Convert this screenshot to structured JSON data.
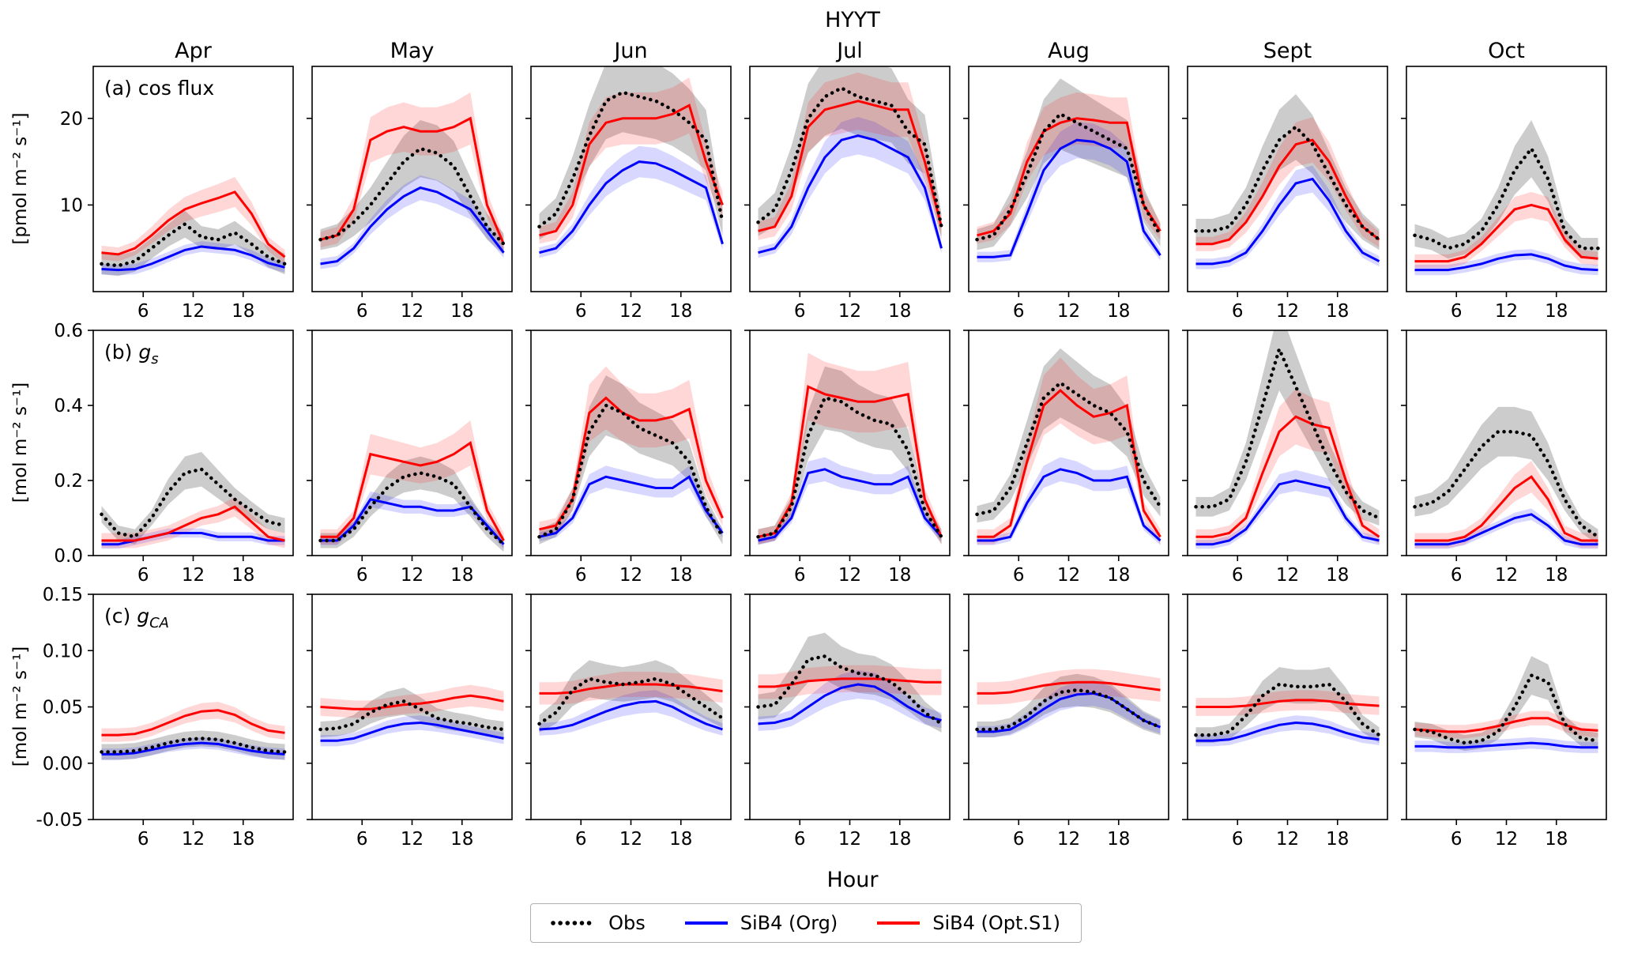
{
  "chart_data": {
    "type": "line",
    "title": "HYYT",
    "xlabel": "Hour",
    "x": [
      1,
      3,
      5,
      7,
      9,
      11,
      13,
      15,
      17,
      19,
      21,
      23
    ],
    "xlim": [
      0,
      24
    ],
    "xticks": [
      6,
      12,
      18
    ],
    "columns": [
      "Apr",
      "May",
      "Jun",
      "Jul",
      "Aug",
      "Sept",
      "Oct"
    ],
    "series": [
      {
        "key": "obs",
        "name": "Obs",
        "color": "#000000",
        "width": 4.5,
        "dash": "0.1 8",
        "band_color": "#555555",
        "band_opacity": 0.3
      },
      {
        "key": "org",
        "name": "SiB4 (Org)",
        "color": "#0000ff",
        "width": 3,
        "band_color": "#2222ff",
        "band_opacity": 0.18
      },
      {
        "key": "opt",
        "name": "SiB4 (Opt.S1)",
        "color": "#ff0000",
        "width": 3,
        "band_color": "#ff2222",
        "band_opacity": 0.18
      }
    ],
    "legend": [
      {
        "key": "obs",
        "label": "Obs"
      },
      {
        "key": "org",
        "label": "SiB4 (Org)"
      },
      {
        "key": "opt",
        "label": "SiB4 (Opt.S1)"
      }
    ],
    "rows": [
      {
        "key": "cos-flux",
        "panel_label": {
          "prefix": "(a) cos flux"
        },
        "ylabel": "[pmol m⁻² s⁻¹]",
        "ylim": [
          0,
          26
        ],
        "ytick_vals": [
          10,
          20
        ],
        "ytick_labels": [
          "10",
          "20"
        ],
        "band": {
          "obs": [
            0.2,
            1.2
          ],
          "org": [
            0.12,
            0.6
          ],
          "opt": [
            0.15,
            0.8
          ]
        }
      },
      {
        "key": "gs",
        "panel_label": {
          "prefix": "(b) ",
          "var": "g",
          "sub": "s"
        },
        "ylabel": "[mol m⁻² s⁻¹]",
        "ylim": [
          0,
          0.6
        ],
        "ytick_vals": [
          0,
          0.2,
          0.4,
          0.6
        ],
        "ytick_labels": [
          "0.0",
          "0.2",
          "0.4",
          "0.6"
        ],
        "band": {
          "obs": [
            0.2,
            0.02
          ],
          "org": [
            0.14,
            0.012
          ],
          "opt": [
            0.2,
            0.02
          ]
        }
      },
      {
        "key": "gca",
        "panel_label": {
          "prefix": "(c) ",
          "var": "g",
          "sub": "CA"
        },
        "ylabel": "[mol m⁻² s⁻¹]",
        "ylim": [
          -0.05,
          0.15
        ],
        "ytick_vals": [
          -0.05,
          0,
          0.05,
          0.1,
          0.15
        ],
        "ytick_labels": [
          "-0.05",
          "0.00",
          "0.05",
          "0.10",
          "0.15"
        ],
        "band": {
          "obs": [
            0.22,
            0.007
          ],
          "org": [
            0.18,
            0.005
          ],
          "opt": [
            0.16,
            0.006
          ]
        }
      }
    ],
    "panels": [
      [
        {
          "obs": [
            3.2,
            3.0,
            3.5,
            5.0,
            6.5,
            7.8,
            6.3,
            6.0,
            6.8,
            5.5,
            4.0,
            3.2
          ],
          "org": [
            2.6,
            2.5,
            2.6,
            3.2,
            4.0,
            4.8,
            5.2,
            5.0,
            4.8,
            4.2,
            3.3,
            2.8
          ],
          "opt": [
            4.5,
            4.3,
            5.0,
            6.5,
            8.2,
            9.5,
            10.2,
            10.8,
            11.5,
            9.0,
            5.5,
            4.0
          ]
        },
        {
          "obs": [
            6.0,
            6.5,
            8.0,
            10.0,
            12.5,
            15.0,
            16.5,
            16.0,
            14.5,
            11.0,
            7.5,
            5.5
          ],
          "org": [
            3.2,
            3.5,
            5.0,
            7.5,
            9.5,
            11.0,
            12.0,
            11.5,
            10.5,
            9.5,
            7.0,
            4.5
          ],
          "opt": [
            6.0,
            6.5,
            9.5,
            17.5,
            18.5,
            19.0,
            18.5,
            18.5,
            19.0,
            20.0,
            10.0,
            5.5
          ]
        },
        {
          "obs": [
            7.5,
            9.0,
            13.0,
            18.0,
            22.0,
            23.0,
            22.5,
            22.0,
            21.0,
            19.5,
            17.5,
            8.0
          ],
          "org": [
            4.5,
            5.0,
            7.0,
            10.0,
            12.5,
            14.0,
            15.0,
            14.8,
            14.0,
            13.0,
            12.0,
            5.5
          ],
          "opt": [
            6.5,
            7.0,
            10.0,
            17.0,
            19.5,
            20.0,
            20.0,
            20.0,
            20.5,
            21.5,
            15.0,
            10.0
          ]
        },
        {
          "obs": [
            8.0,
            9.5,
            14.0,
            20.0,
            22.5,
            23.5,
            22.5,
            22.0,
            21.5,
            18.5,
            17.0,
            7.5
          ],
          "org": [
            4.5,
            5.0,
            7.5,
            12.0,
            15.5,
            17.5,
            18.0,
            17.5,
            16.5,
            15.5,
            12.0,
            5.0
          ],
          "opt": [
            7.0,
            7.5,
            11.0,
            19.0,
            21.0,
            21.5,
            22.0,
            21.5,
            21.0,
            21.0,
            15.0,
            7.5
          ]
        },
        {
          "obs": [
            6.0,
            6.5,
            9.5,
            13.5,
            18.5,
            20.5,
            19.5,
            18.5,
            17.5,
            16.5,
            10.0,
            6.5
          ],
          "org": [
            4.0,
            4.0,
            4.2,
            9.0,
            14.0,
            16.5,
            17.5,
            17.3,
            16.5,
            15.0,
            7.0,
            4.2
          ],
          "opt": [
            6.5,
            7.0,
            9.0,
            15.0,
            18.5,
            19.5,
            20.0,
            19.8,
            19.5,
            19.5,
            10.0,
            7.0
          ]
        },
        {
          "obs": [
            7.0,
            7.0,
            7.5,
            10.0,
            14.0,
            17.5,
            19.0,
            17.0,
            13.5,
            10.0,
            7.5,
            6.0
          ],
          "org": [
            3.2,
            3.2,
            3.5,
            4.5,
            7.0,
            10.0,
            12.5,
            13.0,
            10.5,
            7.0,
            4.5,
            3.5
          ],
          "opt": [
            5.5,
            5.5,
            6.0,
            8.0,
            11.0,
            14.5,
            17.0,
            17.5,
            15.0,
            11.0,
            7.5,
            6.0
          ]
        },
        {
          "obs": [
            6.5,
            6.0,
            5.0,
            5.5,
            7.0,
            10.0,
            14.0,
            16.5,
            13.0,
            7.0,
            5.0,
            5.0
          ],
          "org": [
            2.5,
            2.5,
            2.5,
            2.8,
            3.2,
            3.8,
            4.2,
            4.3,
            3.8,
            3.0,
            2.6,
            2.5
          ],
          "opt": [
            3.5,
            3.5,
            3.5,
            4.0,
            5.5,
            7.5,
            9.5,
            10.0,
            9.5,
            6.0,
            4.0,
            3.8
          ]
        }
      ],
      [
        {
          "obs": [
            0.11,
            0.06,
            0.05,
            0.1,
            0.17,
            0.22,
            0.23,
            0.19,
            0.15,
            0.12,
            0.09,
            0.08
          ],
          "org": [
            0.03,
            0.03,
            0.04,
            0.05,
            0.06,
            0.06,
            0.06,
            0.05,
            0.05,
            0.05,
            0.04,
            0.04
          ],
          "opt": [
            0.04,
            0.04,
            0.04,
            0.05,
            0.06,
            0.08,
            0.1,
            0.11,
            0.13,
            0.09,
            0.05,
            0.04
          ]
        },
        {
          "obs": [
            0.04,
            0.04,
            0.07,
            0.13,
            0.18,
            0.21,
            0.22,
            0.21,
            0.19,
            0.13,
            0.07,
            0.03
          ],
          "org": [
            0.04,
            0.04,
            0.08,
            0.15,
            0.14,
            0.13,
            0.13,
            0.12,
            0.12,
            0.13,
            0.08,
            0.03
          ],
          "opt": [
            0.05,
            0.05,
            0.1,
            0.27,
            0.26,
            0.25,
            0.24,
            0.25,
            0.27,
            0.3,
            0.12,
            0.04
          ]
        },
        {
          "obs": [
            0.05,
            0.07,
            0.15,
            0.33,
            0.4,
            0.38,
            0.34,
            0.32,
            0.3,
            0.25,
            0.13,
            0.05
          ],
          "org": [
            0.05,
            0.06,
            0.1,
            0.19,
            0.21,
            0.2,
            0.19,
            0.18,
            0.18,
            0.21,
            0.12,
            0.06
          ],
          "opt": [
            0.07,
            0.08,
            0.15,
            0.38,
            0.42,
            0.38,
            0.36,
            0.36,
            0.37,
            0.39,
            0.2,
            0.1
          ]
        },
        {
          "obs": [
            0.05,
            0.06,
            0.13,
            0.32,
            0.42,
            0.41,
            0.38,
            0.36,
            0.35,
            0.28,
            0.12,
            0.05
          ],
          "org": [
            0.04,
            0.05,
            0.1,
            0.22,
            0.23,
            0.21,
            0.2,
            0.19,
            0.19,
            0.21,
            0.1,
            0.05
          ],
          "opt": [
            0.05,
            0.06,
            0.14,
            0.45,
            0.43,
            0.42,
            0.41,
            0.41,
            0.42,
            0.43,
            0.15,
            0.05
          ]
        },
        {
          "obs": [
            0.11,
            0.12,
            0.18,
            0.3,
            0.42,
            0.46,
            0.43,
            0.4,
            0.38,
            0.33,
            0.2,
            0.13
          ],
          "org": [
            0.04,
            0.04,
            0.05,
            0.14,
            0.21,
            0.23,
            0.22,
            0.2,
            0.2,
            0.21,
            0.08,
            0.04
          ],
          "opt": [
            0.05,
            0.05,
            0.08,
            0.25,
            0.4,
            0.44,
            0.4,
            0.37,
            0.38,
            0.4,
            0.12,
            0.05
          ]
        },
        {
          "obs": [
            0.13,
            0.13,
            0.15,
            0.25,
            0.4,
            0.55,
            0.45,
            0.35,
            0.25,
            0.17,
            0.12,
            0.1
          ],
          "org": [
            0.03,
            0.03,
            0.04,
            0.07,
            0.13,
            0.19,
            0.2,
            0.19,
            0.18,
            0.1,
            0.05,
            0.04
          ],
          "opt": [
            0.05,
            0.05,
            0.06,
            0.1,
            0.22,
            0.33,
            0.37,
            0.35,
            0.34,
            0.2,
            0.08,
            0.05
          ]
        },
        {
          "obs": [
            0.13,
            0.14,
            0.17,
            0.23,
            0.29,
            0.33,
            0.33,
            0.32,
            0.25,
            0.15,
            0.08,
            0.05
          ],
          "org": [
            0.03,
            0.03,
            0.03,
            0.04,
            0.06,
            0.08,
            0.1,
            0.11,
            0.08,
            0.04,
            0.03,
            0.03
          ],
          "opt": [
            0.04,
            0.04,
            0.04,
            0.05,
            0.08,
            0.13,
            0.18,
            0.21,
            0.15,
            0.06,
            0.04,
            0.04
          ]
        }
      ],
      [
        {
          "obs": [
            0.01,
            0.01,
            0.011,
            0.014,
            0.018,
            0.021,
            0.022,
            0.021,
            0.018,
            0.014,
            0.011,
            0.01
          ],
          "org": [
            0.008,
            0.008,
            0.009,
            0.012,
            0.015,
            0.017,
            0.018,
            0.017,
            0.014,
            0.011,
            0.009,
            0.008
          ],
          "opt": [
            0.025,
            0.025,
            0.026,
            0.03,
            0.036,
            0.042,
            0.046,
            0.047,
            0.043,
            0.035,
            0.029,
            0.027
          ]
        },
        {
          "obs": [
            0.03,
            0.031,
            0.035,
            0.045,
            0.052,
            0.055,
            0.048,
            0.04,
            0.037,
            0.035,
            0.032,
            0.03
          ],
          "org": [
            0.02,
            0.02,
            0.022,
            0.027,
            0.032,
            0.035,
            0.036,
            0.034,
            0.031,
            0.028,
            0.025,
            0.022
          ],
          "opt": [
            0.05,
            0.049,
            0.048,
            0.048,
            0.05,
            0.052,
            0.053,
            0.055,
            0.058,
            0.06,
            0.058,
            0.055
          ]
        },
        {
          "obs": [
            0.035,
            0.045,
            0.065,
            0.075,
            0.072,
            0.07,
            0.072,
            0.075,
            0.07,
            0.06,
            0.05,
            0.04
          ],
          "org": [
            0.03,
            0.031,
            0.034,
            0.04,
            0.046,
            0.051,
            0.054,
            0.055,
            0.05,
            0.042,
            0.035,
            0.03
          ],
          "opt": [
            0.062,
            0.062,
            0.063,
            0.066,
            0.068,
            0.07,
            0.07,
            0.07,
            0.069,
            0.068,
            0.066,
            0.064
          ]
        },
        {
          "obs": [
            0.05,
            0.052,
            0.07,
            0.092,
            0.095,
            0.085,
            0.08,
            0.078,
            0.072,
            0.06,
            0.045,
            0.035
          ],
          "org": [
            0.035,
            0.036,
            0.04,
            0.05,
            0.06,
            0.067,
            0.07,
            0.068,
            0.06,
            0.05,
            0.042,
            0.038
          ],
          "opt": [
            0.068,
            0.068,
            0.07,
            0.073,
            0.074,
            0.075,
            0.075,
            0.075,
            0.074,
            0.073,
            0.072,
            0.072
          ]
        },
        {
          "obs": [
            0.03,
            0.03,
            0.033,
            0.042,
            0.055,
            0.063,
            0.065,
            0.063,
            0.058,
            0.048,
            0.038,
            0.032
          ],
          "org": [
            0.028,
            0.028,
            0.03,
            0.038,
            0.048,
            0.057,
            0.061,
            0.062,
            0.058,
            0.048,
            0.038,
            0.032
          ],
          "opt": [
            0.062,
            0.062,
            0.063,
            0.066,
            0.069,
            0.071,
            0.072,
            0.072,
            0.071,
            0.069,
            0.067,
            0.065
          ]
        },
        {
          "obs": [
            0.025,
            0.025,
            0.028,
            0.042,
            0.06,
            0.07,
            0.068,
            0.068,
            0.07,
            0.055,
            0.035,
            0.025
          ],
          "org": [
            0.02,
            0.02,
            0.021,
            0.025,
            0.03,
            0.034,
            0.036,
            0.035,
            0.032,
            0.027,
            0.023,
            0.021
          ],
          "opt": [
            0.05,
            0.05,
            0.05,
            0.051,
            0.053,
            0.055,
            0.056,
            0.056,
            0.055,
            0.053,
            0.052,
            0.051
          ]
        },
        {
          "obs": [
            0.03,
            0.028,
            0.022,
            0.018,
            0.02,
            0.028,
            0.05,
            0.078,
            0.072,
            0.035,
            0.022,
            0.02
          ],
          "org": [
            0.015,
            0.015,
            0.014,
            0.014,
            0.015,
            0.016,
            0.017,
            0.018,
            0.017,
            0.015,
            0.014,
            0.014
          ],
          "opt": [
            0.03,
            0.029,
            0.028,
            0.028,
            0.03,
            0.033,
            0.037,
            0.04,
            0.04,
            0.034,
            0.03,
            0.029
          ]
        }
      ]
    ]
  }
}
